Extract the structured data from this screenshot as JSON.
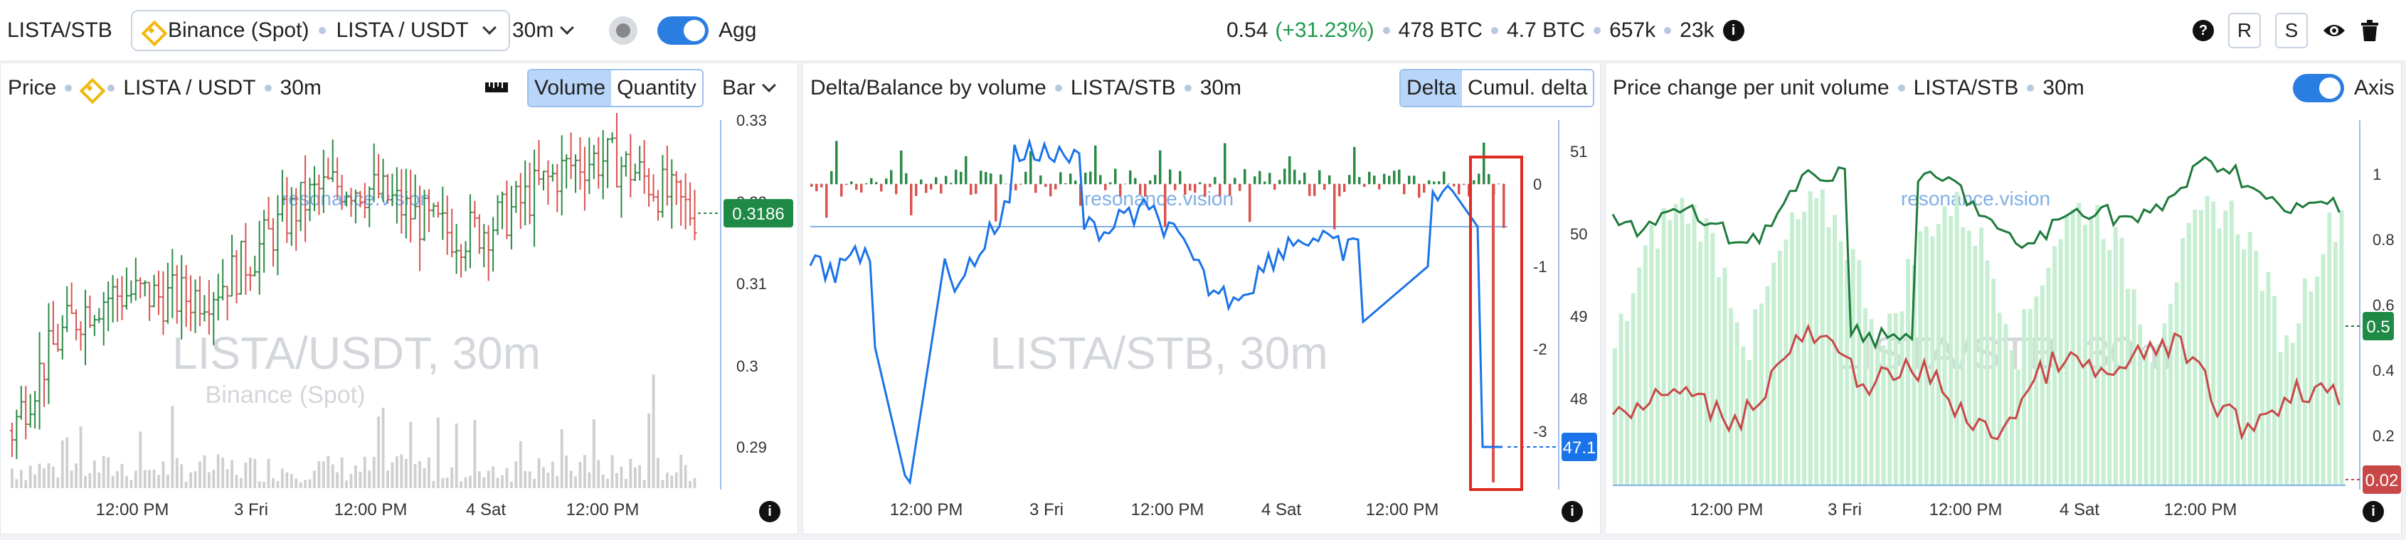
{
  "topbar": {
    "symbol": "LISTA/STB",
    "exchange": "Binance (Spot)",
    "pair": "LISTA / USDT",
    "timeframe": "30m",
    "agg_label": "Agg",
    "price": "0.54",
    "change": "(+31.23%)",
    "volume_btc": "478 BTC",
    "vol2_btc": "4.7 BTC",
    "stat1": "657k",
    "stat2": "23k",
    "btn_r": "R",
    "btn_s": "S",
    "icons": [
      "binance-logo",
      "chevron-down-icon",
      "record-icon",
      "toggle",
      "info-icon",
      "help-icon",
      "eye-icon",
      "trash-icon"
    ]
  },
  "watermark": "resonance.vision",
  "time_ticks": [
    "12:00 PM",
    "3 Fri",
    "12:00 PM",
    "4 Sat",
    "12:00 PM"
  ],
  "panels": {
    "price": {
      "title": "Price",
      "pair": "LISTA / USDT",
      "tf": "30m",
      "opt_volume": "Volume",
      "opt_quantity": "Quantity",
      "chart_type": "Bar",
      "wm_big": "LISTA/USDT, 30m",
      "wm_small": "Binance (Spot)",
      "y_ticks": [
        "0.33",
        "0.32",
        "0.31",
        "0.3",
        "0.29"
      ],
      "last_price": "0.3186"
    },
    "delta": {
      "title": "Delta/Balance by volume",
      "pair": "LISTA/STB",
      "tf": "30m",
      "opt_delta": "Delta",
      "opt_cumul": "Cumul. delta",
      "wm_big": "LISTA/STB, 30m",
      "y_ticks_left": [
        "0",
        "-1",
        "-2",
        "-3"
      ],
      "y_ticks_right": [
        "51",
        "50",
        "49",
        "48"
      ],
      "last_value": "47.1"
    },
    "pcu": {
      "title": "Price change per unit volume",
      "pair": "LISTA/STB",
      "tf": "30m",
      "axis_label": "Axis",
      "wm_big": "LISTA/STB, 30m",
      "y_ticks": [
        "1",
        "0.8",
        "0.6",
        "0.4",
        "0.2"
      ],
      "val_green": "0.5",
      "val_red": "0.02"
    }
  },
  "colors": {
    "up": "#2a8a45",
    "down": "#d9534f",
    "blue": "#1a73e8",
    "green_line": "#1e7a3a",
    "red_line": "#c84848",
    "volume_bar": "#cfcfcf",
    "highlight_box": "#e02b20"
  }
}
